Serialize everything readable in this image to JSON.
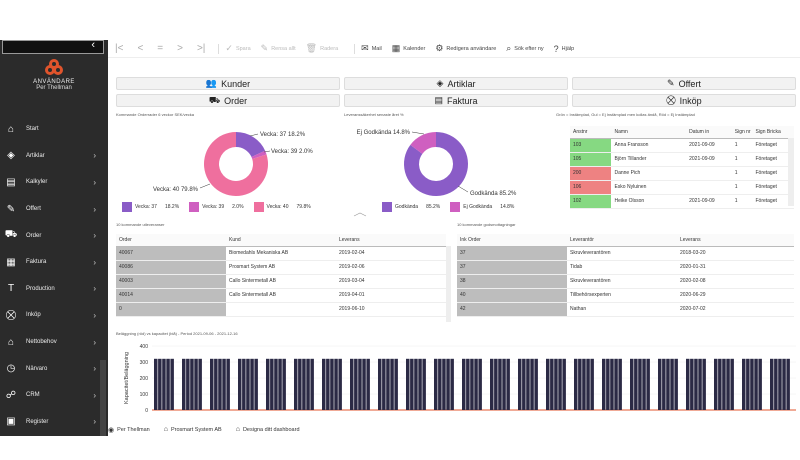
{
  "sidebar": {
    "collapse_icon": "chevron-left-icon",
    "brand": "ANVÄNDARE",
    "user": "Per Thellman",
    "items": [
      {
        "label": "Start",
        "icon": "home-icon",
        "glyph": "⌂",
        "chevron": false
      },
      {
        "label": "Artiklar",
        "icon": "box-icon",
        "glyph": "◈",
        "chevron": true
      },
      {
        "label": "Kalkyler",
        "icon": "calculator-icon",
        "glyph": "▤",
        "chevron": true
      },
      {
        "label": "Offert",
        "icon": "signature-icon",
        "glyph": "✎",
        "chevron": true
      },
      {
        "label": "Order",
        "icon": "truck-icon",
        "glyph": "⛟",
        "chevron": true
      },
      {
        "label": "Faktura",
        "icon": "invoice-icon",
        "glyph": "▦",
        "chevron": true
      },
      {
        "label": "Production",
        "icon": "production-icon",
        "glyph": "T",
        "chevron": true
      },
      {
        "label": "Inköp",
        "icon": "cart-icon",
        "glyph": "⛒",
        "chevron": true
      },
      {
        "label": "Nettobehov",
        "icon": "warehouse-icon",
        "glyph": "⌂",
        "chevron": true
      },
      {
        "label": "Närvaro",
        "icon": "stopwatch-icon",
        "glyph": "◷",
        "chevron": true
      },
      {
        "label": "CRM",
        "icon": "crm-icon",
        "glyph": "☍",
        "chevron": true
      },
      {
        "label": "Register",
        "icon": "register-icon",
        "glyph": "▣",
        "chevron": true
      }
    ]
  },
  "toolbar": {
    "nav": [
      "|<",
      "<",
      "=",
      ">",
      ">|"
    ],
    "actions": [
      {
        "label": "Spara",
        "glyph": "✓",
        "icon": "check-icon",
        "disabled": true
      },
      {
        "label": "Rensa allt",
        "glyph": "✎",
        "icon": "eraser-icon",
        "disabled": true
      },
      {
        "label": "Radera",
        "glyph": "🗑",
        "icon": "trash-icon",
        "disabled": true
      },
      {
        "label": "Mail",
        "glyph": "✉",
        "icon": "mail-icon",
        "disabled": false
      },
      {
        "label": "Kalender",
        "glyph": "▦",
        "icon": "calendar-icon",
        "disabled": false
      },
      {
        "label": "Redigera användare",
        "glyph": "⚙",
        "icon": "user-gear-icon",
        "disabled": false
      },
      {
        "label": "Sök efter ny",
        "glyph": "⌕",
        "icon": "search-icon",
        "disabled": false
      },
      {
        "label": "Hjälp",
        "glyph": "?",
        "icon": "help-icon",
        "disabled": false
      }
    ]
  },
  "buttons": {
    "kunder": {
      "label": "Kunder",
      "glyph": "👥"
    },
    "artiklar": {
      "label": "Artiklar",
      "glyph": "◈"
    },
    "offert": {
      "label": "Offert",
      "glyph": "✎"
    },
    "order": {
      "label": "Order",
      "glyph": "⛟"
    },
    "faktura": {
      "label": "Faktura",
      "glyph": "▤"
    },
    "inkop": {
      "label": "Inköp",
      "glyph": "⛒"
    }
  },
  "captions": {
    "pie1": "Kommande Orderrader 6 veckor SEK/vecka",
    "pie2": "Leveranssäkerhet senaste året %",
    "purchase": "Grön = Instämplad, Gul = Ej Instämplad men kollas ändå, Röd = Ej Instämplad",
    "deliveries": "10 kommande utleveranser",
    "receipts": "10 kommande godsmottagningar",
    "capacity": "Beläggning (röd) vs kapacitet (blå) - Period 2021-09-06 - 2021-12-16"
  },
  "chart_data": [
    {
      "type": "pie",
      "title": "Kommande Orderrader 6 veckor SEK/vecka",
      "labels": [
        "Vecka: 37",
        "Vecka: 39",
        "Vecka: 40"
      ],
      "values": [
        18.2,
        2.0,
        79.8
      ],
      "callouts": [
        "Vecka: 37  18.2%",
        "Vecka: 39  2.0%",
        "Vecka: 40  79.8%"
      ],
      "legend": [
        {
          "label": "Vecka: 37",
          "pct": "18.2%"
        },
        {
          "label": "Vecka: 39",
          "pct": "2.0%"
        },
        {
          "label": "Vecka: 40",
          "pct": "79.8%"
        }
      ],
      "colors": [
        "#8a5cc7",
        "#cf5fc0",
        "#ef6f9e"
      ]
    },
    {
      "type": "pie",
      "title": "Leveranssäkerhet senaste året %",
      "labels": [
        "Godkända",
        "Ej Godkända"
      ],
      "values": [
        85.2,
        14.8
      ],
      "callouts": [
        "Godkända  85.2%",
        "Ej Godkända  14.8%"
      ],
      "legend": [
        {
          "label": "Godkända",
          "pct": "85.2%"
        },
        {
          "label": "Ej Godkända",
          "pct": "14.8%"
        }
      ],
      "colors": [
        "#8a5cc7",
        "#cf5fc0"
      ]
    },
    {
      "type": "bar",
      "title": "Beläggning (röd) vs kapacitet (blå) - Period 2021-09-06 - 2021-12-16",
      "ylabel": "Kapacitet/Beläggning",
      "ylim": [
        0,
        400
      ],
      "yticks": [
        0,
        100,
        200,
        300,
        400
      ],
      "groups_of": 5,
      "group_count": 23,
      "capacity_value": 320,
      "load_value": 0,
      "colors": {
        "capacity": "#2b2a45",
        "load": "#e0542c"
      }
    }
  ],
  "purchase_table": {
    "columns": [
      "Anstnr",
      "Namn",
      "Datum in",
      "Sign nr",
      "Sign Bricka"
    ],
    "rows": [
      {
        "nr": "103",
        "name": "Anna Fransson",
        "date": "2021-09-09",
        "sign": "1",
        "bricka": "Företaget",
        "status": "green"
      },
      {
        "nr": "105",
        "name": "Björn Tillander",
        "date": "2021-09-09",
        "sign": "1",
        "bricka": "Företaget",
        "status": "green"
      },
      {
        "nr": "200",
        "name": "Danne Pich",
        "date": "",
        "sign": "1",
        "bricka": "Företaget",
        "status": "red"
      },
      {
        "nr": "106",
        "name": "Esko Nyluinen",
        "date": "",
        "sign": "1",
        "bricka": "Företaget",
        "status": "red"
      },
      {
        "nr": "102",
        "name": "Heike Olsson",
        "date": "2021-09-09",
        "sign": "1",
        "bricka": "Företaget",
        "status": "green"
      }
    ]
  },
  "deliveries_table": {
    "columns": [
      "Order",
      "Kund",
      "Leverans"
    ],
    "rows": [
      {
        "order": "40067",
        "kund": "Biomedahls Mekaniska AB",
        "lev": "2019-02-04"
      },
      {
        "order": "40086",
        "kund": "Prosmart System AB",
        "lev": "2019-02-06"
      },
      {
        "order": "40003",
        "kund": "Callo Sintermetall AB",
        "lev": "2019-03-04"
      },
      {
        "order": "40014",
        "kund": "Callo Sintermetall AB",
        "lev": "2019-04-01"
      },
      {
        "order": "0",
        "kund": "",
        "lev": "2019-06-10"
      }
    ]
  },
  "receipts_table": {
    "columns": [
      "Ink Order",
      "Leverantör",
      "Leverans"
    ],
    "rows": [
      {
        "order": "37",
        "lev": "Skruvleverantören",
        "date": "2018-03-20"
      },
      {
        "order": "37",
        "lev": "Tidab",
        "date": "2020-01-31"
      },
      {
        "order": "38",
        "lev": "Skruvleverantören",
        "date": "2020-02-08"
      },
      {
        "order": "40",
        "lev": "Tillbehörsexperten",
        "date": "2020-06-29"
      },
      {
        "order": "42",
        "lev": "Nathan",
        "date": "2020-07-02"
      }
    ]
  },
  "status_bar": [
    {
      "label": "Per Thellman",
      "icon": "user-icon",
      "glyph": "◉"
    },
    {
      "label": "Prosmart System AB",
      "icon": "home-icon",
      "glyph": "⌂"
    },
    {
      "label": "Designa ditt dashboard",
      "icon": "home-icon",
      "glyph": "⌂"
    }
  ]
}
